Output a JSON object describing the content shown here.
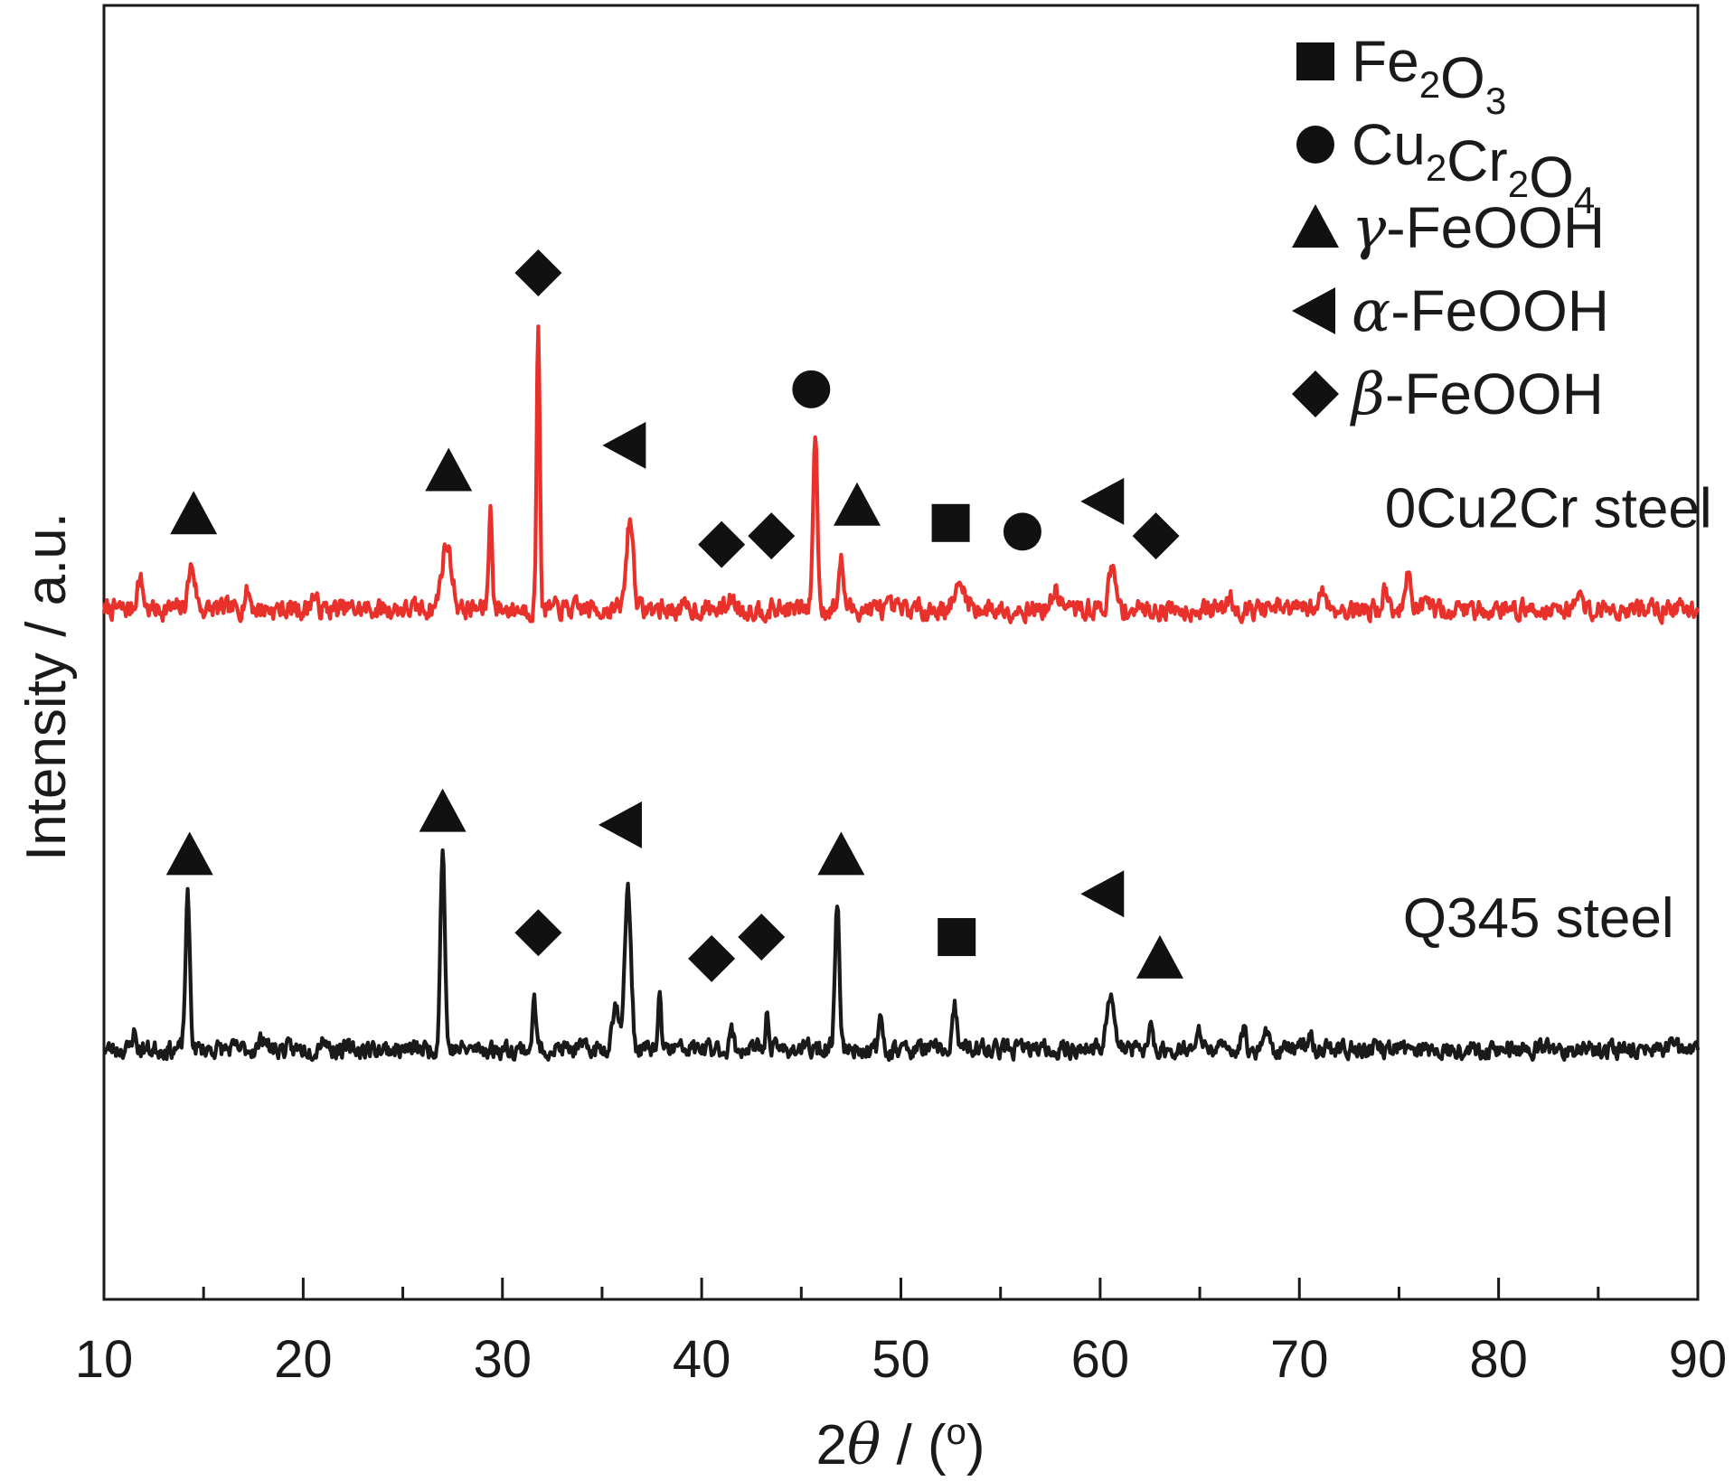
{
  "chart_data": {
    "type": "line",
    "title": "",
    "xlabel_prefix": "2",
    "xlabel_symbol": "θ",
    "xlabel_suffix": " / (",
    "xlabel_degree": "o",
    "xlabel_close": ")",
    "ylabel": "Intensity / a.u.",
    "xlim": [
      10,
      90
    ],
    "x_ticks": [
      10,
      20,
      30,
      40,
      50,
      60,
      70,
      80,
      90
    ],
    "y_ticks_shown": false,
    "grid": false,
    "legend": {
      "placement": "top-right",
      "entries": [
        {
          "marker": "square",
          "parts": [
            [
              "Fe",
              ""
            ],
            [
              "2",
              "sub"
            ],
            [
              "O",
              ""
            ],
            [
              "3",
              "sub"
            ]
          ]
        },
        {
          "marker": "circle",
          "parts": [
            [
              "Cu",
              ""
            ],
            [
              "2",
              "sub"
            ],
            [
              "Cr",
              ""
            ],
            [
              "2",
              "sub"
            ],
            [
              "O",
              ""
            ],
            [
              "4",
              "sub"
            ]
          ]
        },
        {
          "marker": "triangle-up",
          "parts": [
            [
              "γ",
              "ital"
            ],
            [
              "-FeOOH",
              ""
            ]
          ]
        },
        {
          "marker": "triangle-left",
          "parts": [
            [
              "α",
              "ital"
            ],
            [
              "-FeOOH",
              ""
            ]
          ]
        },
        {
          "marker": "diamond",
          "parts": [
            [
              "β",
              "ital"
            ],
            [
              "-FeOOH",
              ""
            ]
          ]
        }
      ]
    },
    "series": [
      {
        "name": "0Cu2Cr steel",
        "color": "#e8312b",
        "baseline": 8.0,
        "noise": 0.18,
        "seed": 7,
        "peaks": [
          [
            11.8,
            0.35,
            0.3
          ],
          [
            14.4,
            0.5,
            0.35
          ],
          [
            17.2,
            0.2,
            0.3
          ],
          [
            20.5,
            0.15,
            0.3
          ],
          [
            27.2,
            0.75,
            0.5
          ],
          [
            29.4,
            1.15,
            0.18
          ],
          [
            31.8,
            3.3,
            0.16
          ],
          [
            36.4,
            1.05,
            0.35
          ],
          [
            41.5,
            0.12,
            0.4
          ],
          [
            45.7,
            2.0,
            0.22
          ],
          [
            47.0,
            0.55,
            0.25
          ],
          [
            53.0,
            0.25,
            0.6
          ],
          [
            57.8,
            0.2,
            0.4
          ],
          [
            60.6,
            0.45,
            0.35
          ],
          [
            66.5,
            0.15,
            0.3
          ],
          [
            71.2,
            0.25,
            0.3
          ],
          [
            74.3,
            0.2,
            0.3
          ],
          [
            75.5,
            0.45,
            0.25
          ],
          [
            84.0,
            0.2,
            0.3
          ]
        ],
        "markers": [
          {
            "type": "triangle-up",
            "x": 14.5,
            "y": 9.1
          },
          {
            "type": "triangle-up",
            "x": 27.3,
            "y": 9.6
          },
          {
            "type": "diamond",
            "x": 31.8,
            "y": 11.9
          },
          {
            "type": "triangle-left",
            "x": 36.2,
            "y": 9.9
          },
          {
            "type": "diamond",
            "x": 41.0,
            "y": 8.75
          },
          {
            "type": "diamond",
            "x": 43.5,
            "y": 8.85
          },
          {
            "type": "circle",
            "x": 45.5,
            "y": 10.55
          },
          {
            "type": "triangle-up",
            "x": 47.8,
            "y": 9.2
          },
          {
            "type": "square",
            "x": 52.5,
            "y": 9.0
          },
          {
            "type": "circle",
            "x": 56.1,
            "y": 8.9
          },
          {
            "type": "triangle-left",
            "x": 60.2,
            "y": 9.25
          },
          {
            "type": "diamond",
            "x": 62.8,
            "y": 8.85
          }
        ]
      },
      {
        "name": "Q345 steel",
        "color": "#1a1a1a",
        "baseline": 2.9,
        "noise": 0.16,
        "seed": 23,
        "peaks": [
          [
            11.5,
            0.2,
            0.2
          ],
          [
            14.2,
            1.75,
            0.22
          ],
          [
            18.0,
            0.15,
            0.3
          ],
          [
            21.0,
            0.15,
            0.3
          ],
          [
            27.0,
            2.35,
            0.22
          ],
          [
            31.6,
            0.55,
            0.18
          ],
          [
            35.7,
            0.5,
            0.4
          ],
          [
            36.3,
            1.85,
            0.3
          ],
          [
            37.9,
            0.6,
            0.15
          ],
          [
            41.5,
            0.2,
            0.2
          ],
          [
            43.3,
            0.4,
            0.18
          ],
          [
            46.8,
            1.75,
            0.22
          ],
          [
            49.0,
            0.35,
            0.18
          ],
          [
            52.7,
            0.5,
            0.2
          ],
          [
            60.5,
            0.6,
            0.4
          ],
          [
            62.5,
            0.25,
            0.2
          ],
          [
            65.0,
            0.2,
            0.2
          ],
          [
            67.2,
            0.25,
            0.2
          ],
          [
            68.3,
            0.2,
            0.3
          ],
          [
            70.5,
            0.15,
            0.3
          ]
        ],
        "markers": [
          {
            "type": "triangle-up",
            "x": 14.3,
            "y": 5.15
          },
          {
            "type": "triangle-up",
            "x": 27.0,
            "y": 5.65
          },
          {
            "type": "diamond",
            "x": 31.8,
            "y": 4.25
          },
          {
            "type": "triangle-left",
            "x": 36.0,
            "y": 5.5
          },
          {
            "type": "diamond",
            "x": 40.5,
            "y": 3.95
          },
          {
            "type": "diamond",
            "x": 43.0,
            "y": 4.2
          },
          {
            "type": "triangle-up",
            "x": 47.0,
            "y": 5.15
          },
          {
            "type": "square",
            "x": 52.8,
            "y": 4.2
          },
          {
            "type": "triangle-left",
            "x": 60.2,
            "y": 4.7
          },
          {
            "type": "triangle-up",
            "x": 63.0,
            "y": 3.95
          }
        ]
      }
    ],
    "series_labels": [
      {
        "text": "0Cu2Cr steel",
        "x": 82.5,
        "y": 8.95
      },
      {
        "text": "Q345 steel",
        "x": 82.0,
        "y": 4.2
      }
    ],
    "ylim": [
      0,
      15
    ]
  }
}
